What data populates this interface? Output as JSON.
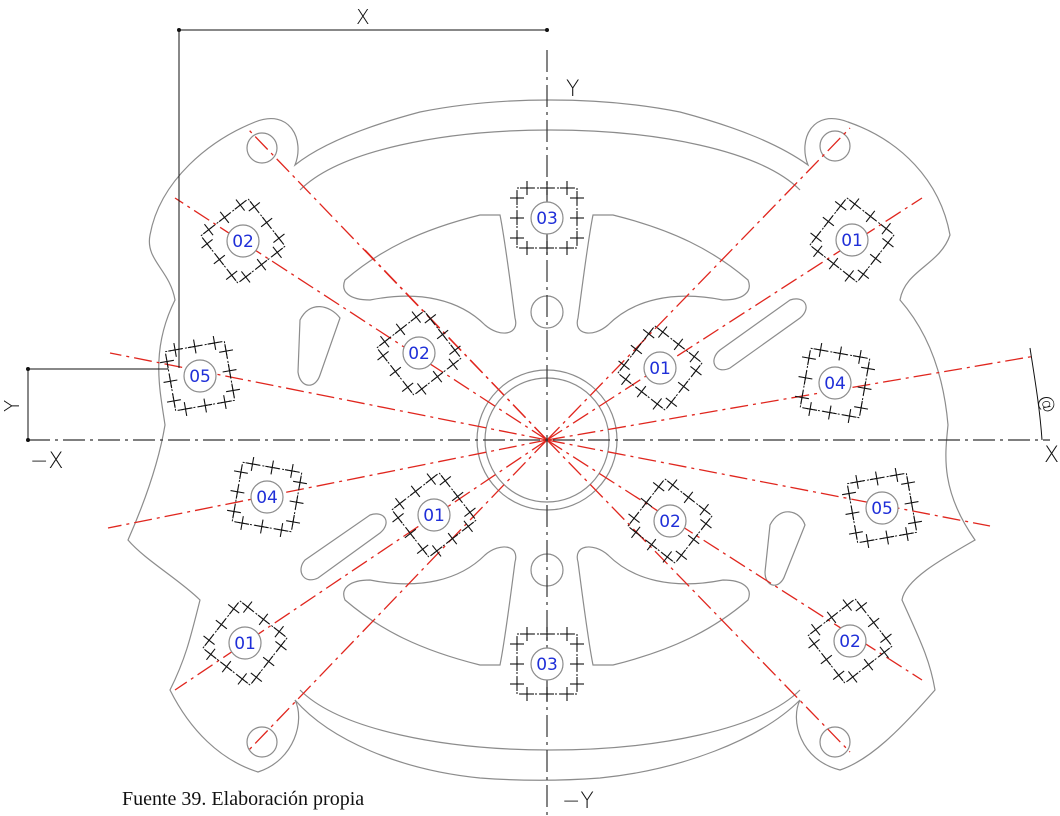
{
  "axes": {
    "x_pos": "X",
    "x_neg": "−X",
    "y_pos": "Y",
    "y_neg": "−Y"
  },
  "dimensions": {
    "horizontal": "X",
    "vertical": "Y",
    "angle_symbol": "@"
  },
  "fixtures": [
    {
      "label": "01",
      "quadrant": "upper-right outer"
    },
    {
      "label": "02",
      "quadrant": "upper-left outer"
    },
    {
      "label": "03",
      "quadrant": "top"
    },
    {
      "label": "02",
      "quadrant": "upper-left inner"
    },
    {
      "label": "01",
      "quadrant": "upper-right inner"
    },
    {
      "label": "05",
      "quadrant": "left"
    },
    {
      "label": "04",
      "quadrant": "right"
    },
    {
      "label": "04",
      "quadrant": "lower-left"
    },
    {
      "label": "01",
      "quadrant": "lower-left inner"
    },
    {
      "label": "02",
      "quadrant": "lower-right inner"
    },
    {
      "label": "05",
      "quadrant": "right lower"
    },
    {
      "label": "01",
      "quadrant": "lower-left outer"
    },
    {
      "label": "03",
      "quadrant": "bottom"
    },
    {
      "label": "02",
      "quadrant": "lower-right outer"
    }
  ],
  "caption": "Fuente 39. Elaboración propia"
}
